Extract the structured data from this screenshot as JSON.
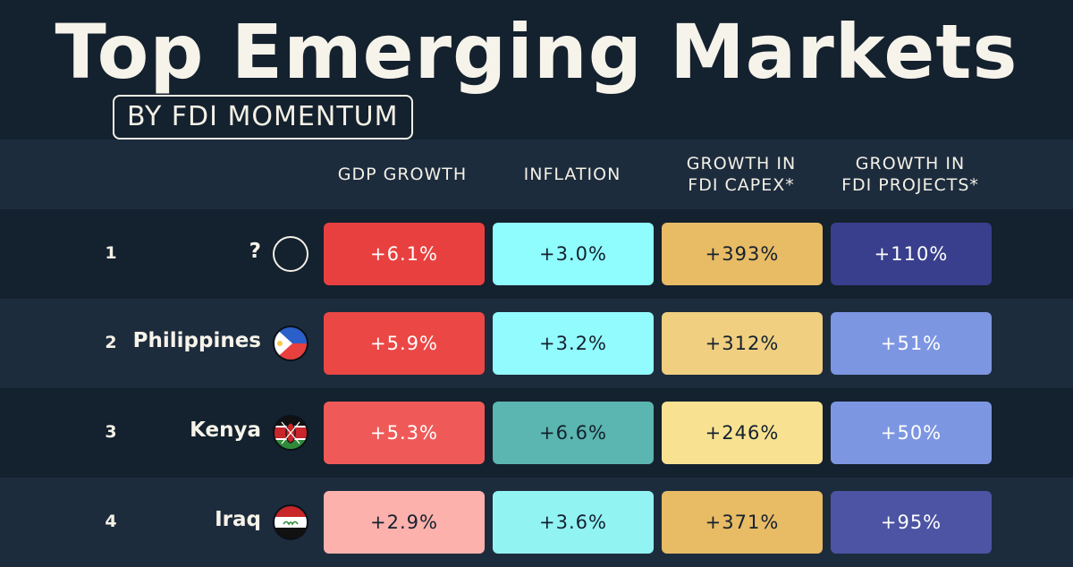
{
  "title": "Top Emerging Markets",
  "subtitle": "BY FDI MOMENTUM",
  "chart_data": {
    "type": "table",
    "columns": [
      "GDP GROWTH",
      "INFLATION",
      "GROWTH IN\nFDI CAPEX*",
      "GROWTH IN\nFDI PROJECTS*"
    ],
    "rows": [
      {
        "rank": "1",
        "country": "?",
        "flag": "unknown-circle-icon",
        "values": [
          "+6.1%",
          "+3.0%",
          "+393%",
          "+110%"
        ],
        "colors": [
          "#e8403f",
          "#8ffcfd",
          "#e8bb65",
          "#393f8c"
        ],
        "text_colors": [
          "#ffffff",
          "#14212e",
          "#14212e",
          "#ffffff"
        ]
      },
      {
        "rank": "2",
        "country": "Philippines",
        "flag": "philippines-flag-icon",
        "values": [
          "+5.9%",
          "+3.2%",
          "+312%",
          "+51%"
        ],
        "colors": [
          "#eb4745",
          "#92fbfd",
          "#f0cf80",
          "#7d96e2"
        ],
        "text_colors": [
          "#ffffff",
          "#14212e",
          "#14212e",
          "#ffffff"
        ]
      },
      {
        "rank": "3",
        "country": "Kenya",
        "flag": "kenya-flag-icon",
        "values": [
          "+5.3%",
          "+6.6%",
          "+246%",
          "+50%"
        ],
        "colors": [
          "#ef5a58",
          "#5bb5b0",
          "#f8e292",
          "#7d96e2"
        ],
        "text_colors": [
          "#ffffff",
          "#14212e",
          "#14212e",
          "#ffffff"
        ]
      },
      {
        "rank": "4",
        "country": "Iraq",
        "flag": "iraq-flag-icon",
        "values": [
          "+2.9%",
          "+3.6%",
          "+371%",
          "+95%"
        ],
        "colors": [
          "#fdb1ac",
          "#92f3f3",
          "#e8bb65",
          "#4c54a3"
        ],
        "text_colors": [
          "#14212e",
          "#14212e",
          "#14212e",
          "#ffffff"
        ]
      }
    ]
  }
}
